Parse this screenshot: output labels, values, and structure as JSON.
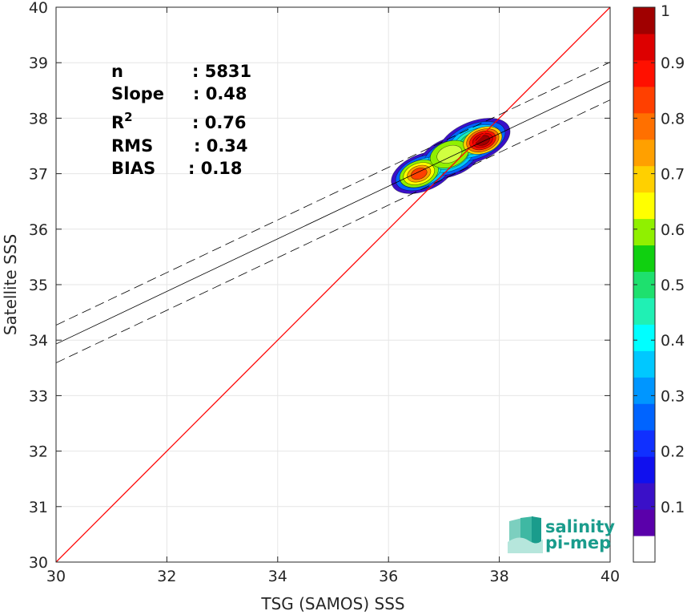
{
  "chart_data": {
    "type": "scatter",
    "subtype": "density-contour",
    "xlabel": "TSG (SAMOS) SSS",
    "ylabel": "Satellite SSS",
    "xlim": [
      30,
      40
    ],
    "ylim": [
      30,
      40
    ],
    "xticks": [
      "30",
      "32",
      "34",
      "36",
      "38",
      "40"
    ],
    "yticks": [
      "30",
      "31",
      "32",
      "33",
      "34",
      "35",
      "36",
      "37",
      "38",
      "39",
      "40"
    ],
    "grid": true,
    "stats": [
      {
        "label": "n",
        "value": ": 5831"
      },
      {
        "label": "Slope",
        "value": ": 0.48"
      },
      {
        "label": "R",
        "sup": "2",
        "value": ": 0.76"
      },
      {
        "label": "RMS",
        "value": ": 0.34"
      },
      {
        "label": "BIAS",
        "value": ": 0.18"
      }
    ],
    "lines": {
      "identity": {
        "slope": 1,
        "intercept": 0,
        "color": "#ff0000"
      },
      "fit": {
        "x": [
          30,
          40
        ],
        "y": [
          33.93,
          38.67
        ],
        "color": "#000000"
      },
      "fit_upper": {
        "x": [
          30,
          40
        ],
        "y": [
          34.27,
          39.01
        ],
        "dash": true
      },
      "fit_lower": {
        "x": [
          30,
          40
        ],
        "y": [
          33.59,
          38.33
        ],
        "dash": true
      }
    },
    "density_peaks": [
      {
        "x": 36.55,
        "y": 37.0,
        "level": 0.75
      },
      {
        "x": 37.1,
        "y": 37.35,
        "level": 0.6
      },
      {
        "x": 37.7,
        "y": 37.6,
        "level": 1.0
      }
    ],
    "colorbar": {
      "range": [
        0,
        1
      ],
      "ticks": [
        "0.1",
        "0.2",
        "0.3",
        "0.4",
        "0.5",
        "0.6",
        "0.7",
        "0.8",
        "0.9",
        "1"
      ],
      "colors": [
        "#ffffff",
        "#5a00aa",
        "#3a10c8",
        "#1010ee",
        "#1030ff",
        "#0064ff",
        "#0096ff",
        "#00c8ff",
        "#00ffff",
        "#20f0b4",
        "#1ee06e",
        "#10d010",
        "#90f000",
        "#ffff00",
        "#ffd000",
        "#ffa000",
        "#ff7000",
        "#ff4000",
        "#ff1000",
        "#dd0000",
        "#a00000"
      ]
    }
  },
  "logo": {
    "line1": "salinity",
    "line2": "pi-mep"
  }
}
